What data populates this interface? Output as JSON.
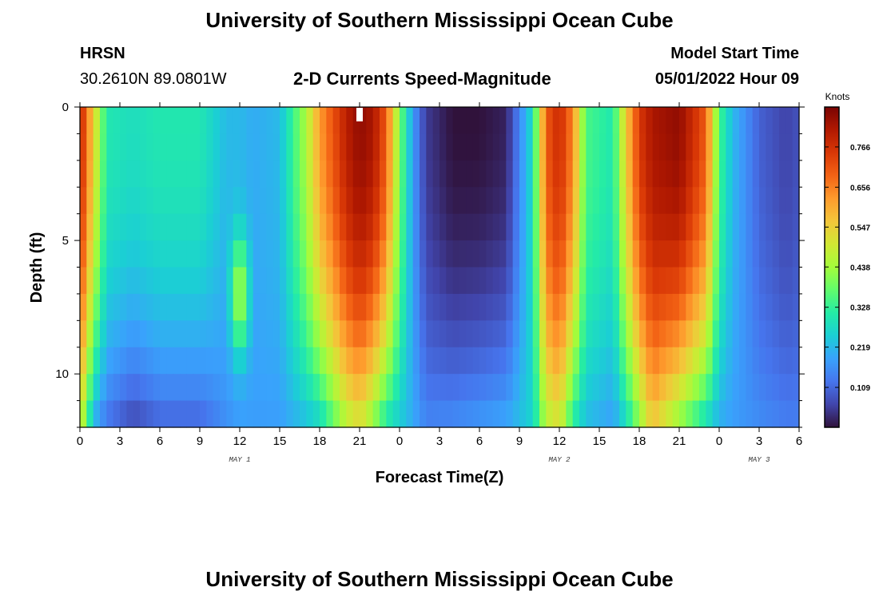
{
  "header": {
    "title": "University of Southern Mississippi Ocean Cube",
    "station_id": "HRSN",
    "coords": "30.2610N  89.0801W",
    "subtitle": "2-D Currents Speed-Magnitude",
    "model_label": "Model Start Time",
    "model_time": "05/01/2022 Hour 09"
  },
  "footer": {
    "title": "University of Southern Mississippi Ocean Cube"
  },
  "chart_data": {
    "type": "heatmap",
    "title": "2-D Currents Speed-Magnitude",
    "xlabel": "Forecast Time(Z)",
    "ylabel": "Depth (ft)",
    "x_range_hours": [
      0,
      54
    ],
    "y_range_ft": [
      0,
      12
    ],
    "x_tick_labels": [
      "0",
      "3",
      "6",
      "9",
      "12",
      "15",
      "18",
      "21",
      "0",
      "3",
      "6",
      "9",
      "12",
      "15",
      "18",
      "21",
      "0",
      "3",
      "6"
    ],
    "y_tick_labels": [
      "0",
      "5",
      "10"
    ],
    "y_tick_values": [
      0,
      5,
      10
    ],
    "day_labels": [
      {
        "text": "MAY 1",
        "hour": 12
      },
      {
        "text": "MAY 2",
        "hour": 36
      },
      {
        "text": "MAY 3",
        "hour": 51
      }
    ],
    "colorbar": {
      "label": "Knots",
      "min": 0.0,
      "max": 0.875,
      "ticks": [
        "0.766",
        "0.656",
        "0.547",
        "0.438",
        "0.328",
        "0.219",
        "0.109"
      ],
      "tick_values": [
        0.766,
        0.656,
        0.547,
        0.438,
        0.328,
        0.219,
        0.109
      ]
    },
    "depth_levels_ft": [
      0,
      1,
      2,
      3,
      4,
      5,
      6,
      7,
      8,
      9,
      10,
      11,
      12
    ],
    "columns": [
      {
        "hour": 0,
        "surface": 0.8,
        "bottom": 0.5
      },
      {
        "hour": 1,
        "surface": 0.55,
        "bottom": 0.2
      },
      {
        "hour": 2,
        "surface": 0.3,
        "bottom": 0.12
      },
      {
        "hour": 4,
        "surface": 0.28,
        "bottom": 0.06
      },
      {
        "hour": 6,
        "surface": 0.3,
        "bottom": 0.1
      },
      {
        "hour": 9,
        "surface": 0.3,
        "bottom": 0.1
      },
      {
        "hour": 11,
        "surface": 0.22,
        "bottom": 0.16
      },
      {
        "hour": 12,
        "surface": 0.22,
        "bottom": 0.18,
        "mid_peak": 0.48
      },
      {
        "hour": 13,
        "surface": 0.2,
        "bottom": 0.18
      },
      {
        "hour": 15,
        "surface": 0.22,
        "bottom": 0.18
      },
      {
        "hour": 17,
        "surface": 0.45,
        "bottom": 0.22
      },
      {
        "hour": 18,
        "surface": 0.62,
        "bottom": 0.25
      },
      {
        "hour": 20,
        "surface": 0.8,
        "bottom": 0.45
      },
      {
        "hour": 21,
        "surface": 0.85,
        "bottom": 0.5
      },
      {
        "hour": 22,
        "surface": 0.82,
        "bottom": 0.4
      },
      {
        "hour": 23,
        "surface": 0.7,
        "bottom": 0.28
      },
      {
        "hour": 24,
        "surface": 0.4,
        "bottom": 0.24
      },
      {
        "hour": 25,
        "surface": 0.18,
        "bottom": 0.2
      },
      {
        "hour": 26,
        "surface": 0.05,
        "bottom": 0.15
      },
      {
        "hour": 28,
        "surface": 0.0,
        "bottom": 0.16
      },
      {
        "hour": 30,
        "surface": 0.0,
        "bottom": 0.18
      },
      {
        "hour": 32,
        "surface": 0.02,
        "bottom": 0.2
      },
      {
        "hour": 34,
        "surface": 0.28,
        "bottom": 0.26
      },
      {
        "hour": 35,
        "surface": 0.7,
        "bottom": 0.45
      },
      {
        "hour": 36,
        "surface": 0.78,
        "bottom": 0.5
      },
      {
        "hour": 37,
        "surface": 0.65,
        "bottom": 0.3
      },
      {
        "hour": 38,
        "surface": 0.35,
        "bottom": 0.22
      },
      {
        "hour": 40,
        "surface": 0.3,
        "bottom": 0.18
      },
      {
        "hour": 41,
        "surface": 0.55,
        "bottom": 0.26
      },
      {
        "hour": 42,
        "surface": 0.75,
        "bottom": 0.4
      },
      {
        "hour": 43,
        "surface": 0.82,
        "bottom": 0.55
      },
      {
        "hour": 45,
        "surface": 0.85,
        "bottom": 0.4
      },
      {
        "hour": 47,
        "surface": 0.7,
        "bottom": 0.26
      },
      {
        "hour": 48,
        "surface": 0.35,
        "bottom": 0.2
      },
      {
        "hour": 49,
        "surface": 0.22,
        "bottom": 0.18
      },
      {
        "hour": 51,
        "surface": 0.1,
        "bottom": 0.16
      },
      {
        "hour": 53,
        "surface": 0.06,
        "bottom": 0.14
      },
      {
        "hour": 54,
        "surface": 0.08,
        "bottom": 0.14
      }
    ],
    "colors": {
      "scale": [
        "#30123b",
        "#4145ab",
        "#4675ed",
        "#39a2fc",
        "#1bcfd4",
        "#24eca6",
        "#61fc6c",
        "#a4fc3b",
        "#d1e834",
        "#f3c63a",
        "#fe9b2d",
        "#f36315",
        "#d93806",
        "#b11901",
        "#7a0403"
      ],
      "frame": "#000000",
      "marker": "#ffffff"
    }
  }
}
